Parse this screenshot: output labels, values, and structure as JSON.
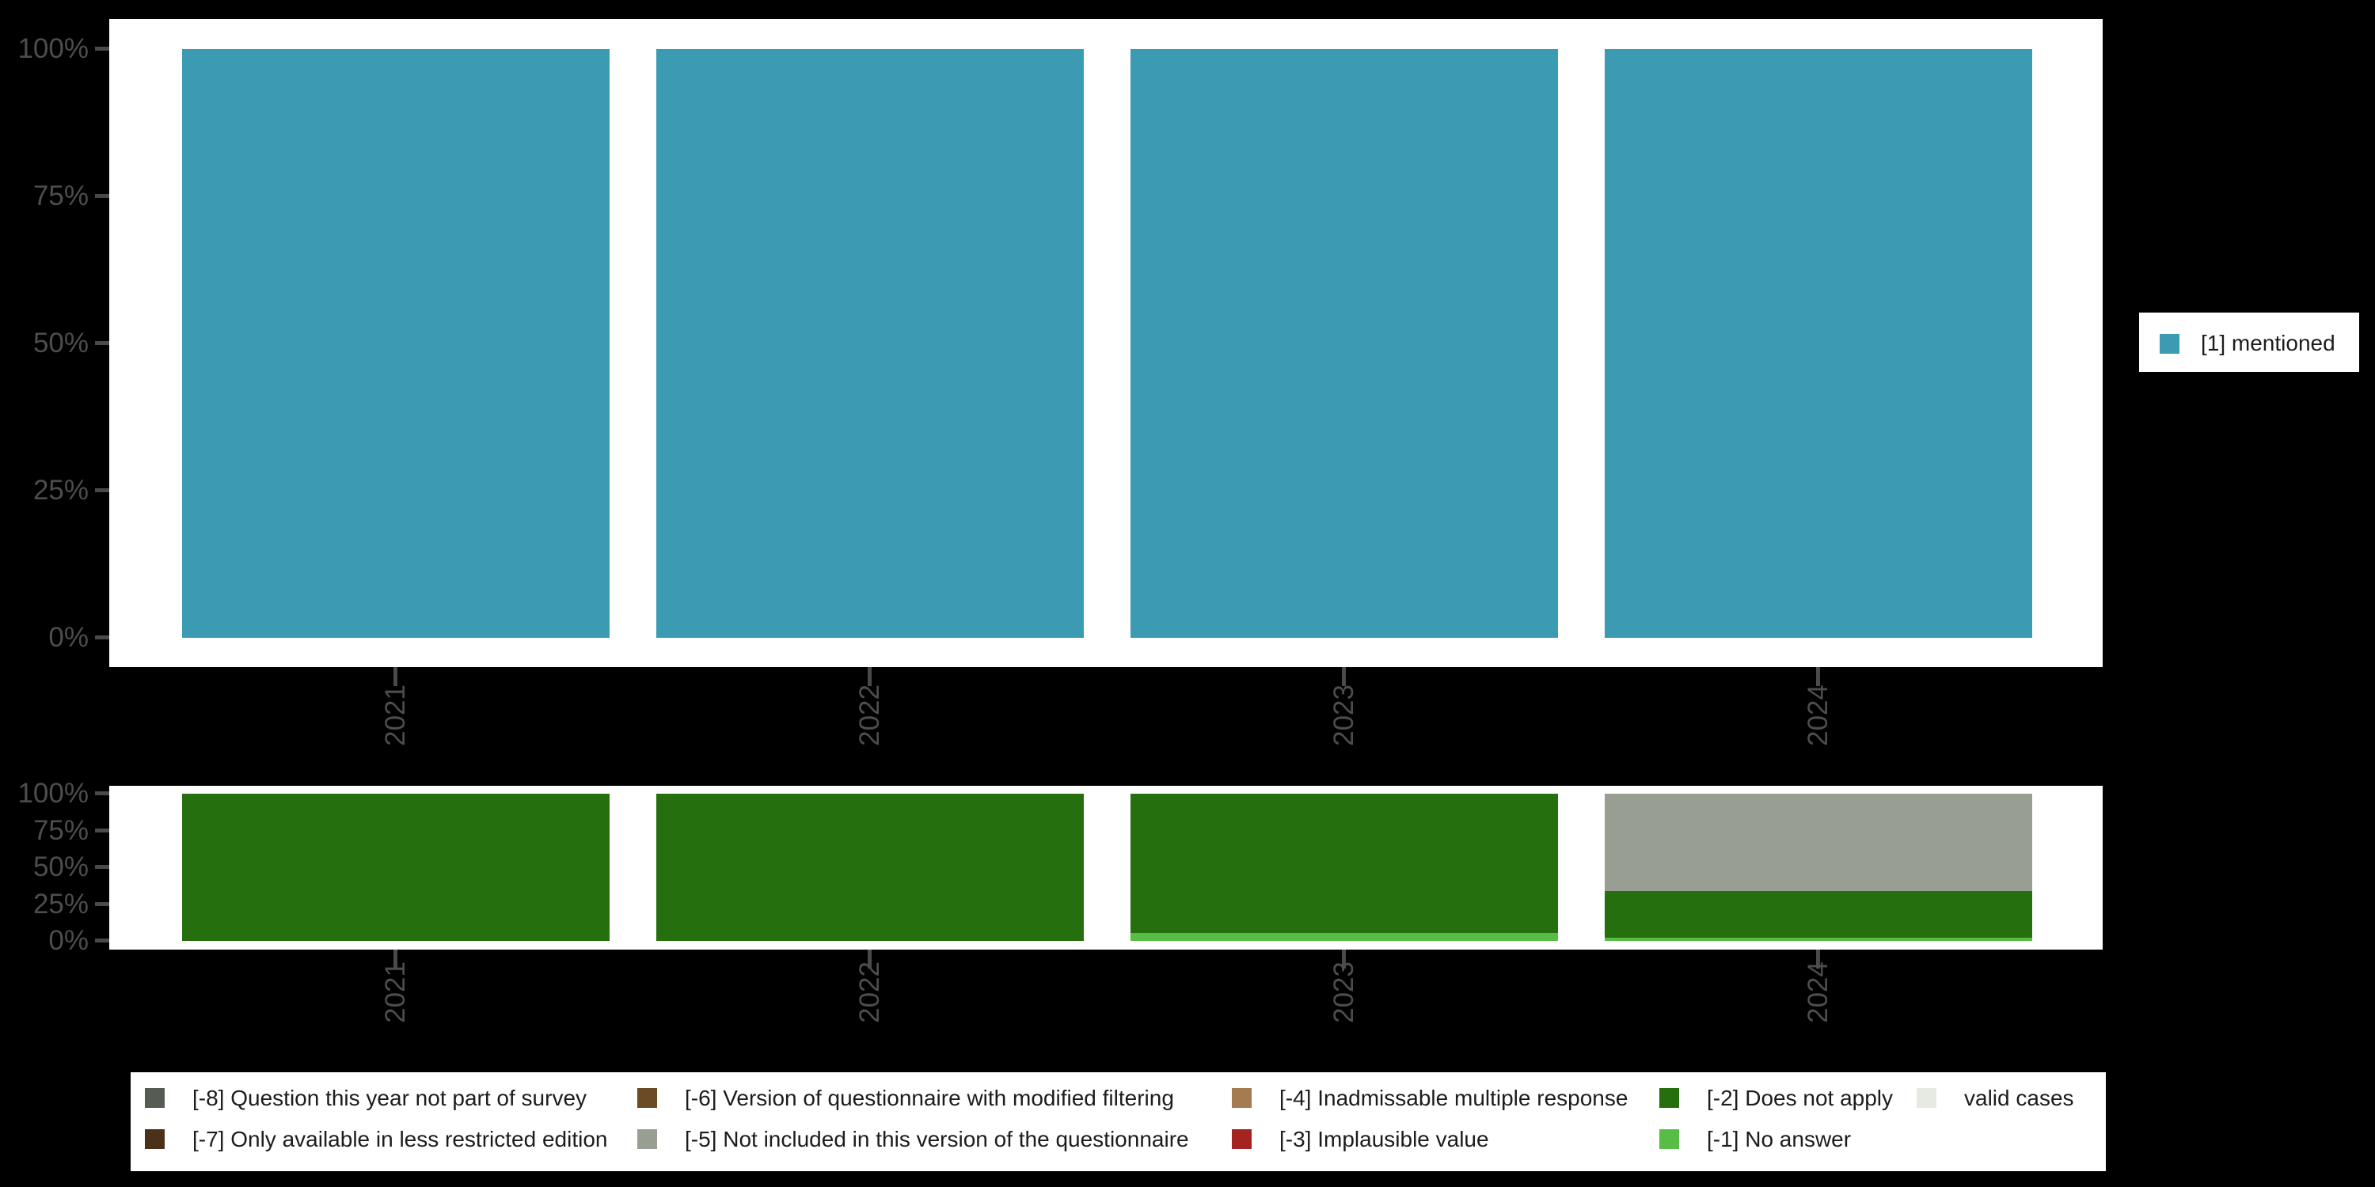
{
  "page": {
    "background_color": "#000000",
    "panel_color": "#ffffff",
    "axis_text_color": "#4d4d4d",
    "legend_text_color": "#1c1c1c"
  },
  "colors": {
    "[1] mentioned": "#3a9bb3",
    "[-8] Question this year not part of survey": "#565c52",
    "[-7] Only available in less restricted edition": "#4a3119",
    "[-6] Version of questionnaire with modified filtering": "#6b4a26",
    "[-5] Not included in this version of the questionnaire": "#999e93",
    "[-4] Inadmissable multiple response": "#a57b50",
    "[-3] Implausible value": "#a32421",
    "[-2] Does not apply": "#266f0f",
    "[-1] No answer": "#58bd45",
    "valid cases": "#e7eae3"
  },
  "chart_data": [
    {
      "type": "bar",
      "stacked": true,
      "orientation": "vertical",
      "title": "",
      "categories": [
        "2021",
        "2022",
        "2023",
        "2024"
      ],
      "series": [
        {
          "name": "[1] mentioned",
          "values": [
            100,
            100,
            100,
            100
          ]
        }
      ],
      "ylabel": "",
      "ylim": [
        0,
        100
      ],
      "ytick_labels": [
        "100%",
        "75%",
        "50%",
        "25%",
        "0%"
      ],
      "grid": false,
      "legend_position": "right"
    },
    {
      "type": "bar",
      "stacked": true,
      "orientation": "vertical",
      "title": "",
      "categories": [
        "2021",
        "2022",
        "2023",
        "2024"
      ],
      "series": [
        {
          "name": "[-5] Not included in this version of the questionnaire",
          "values": [
            0,
            0,
            0,
            66
          ]
        },
        {
          "name": "[-2] Does not apply",
          "values": [
            100,
            100,
            94.5,
            32
          ]
        },
        {
          "name": "[-1] No answer",
          "values": [
            0,
            0,
            5.5,
            2
          ]
        }
      ],
      "ylabel": "",
      "ylim": [
        0,
        100
      ],
      "ytick_labels": [
        "100%",
        "75%",
        "50%",
        "25%",
        "0%"
      ],
      "grid": false,
      "legend_position": "bottom",
      "legend_rows": [
        [
          "[-8] Question this year not part of survey",
          "[-6] Version of questionnaire with modified filtering",
          "[-4] Inadmissable multiple response",
          "[-2] Does not apply",
          "valid cases"
        ],
        [
          "[-7] Only available in less restricted edition",
          "[-5] Not included in this version of the questionnaire",
          "[-3] Implausible value",
          "[-1] No answer"
        ]
      ]
    }
  ]
}
